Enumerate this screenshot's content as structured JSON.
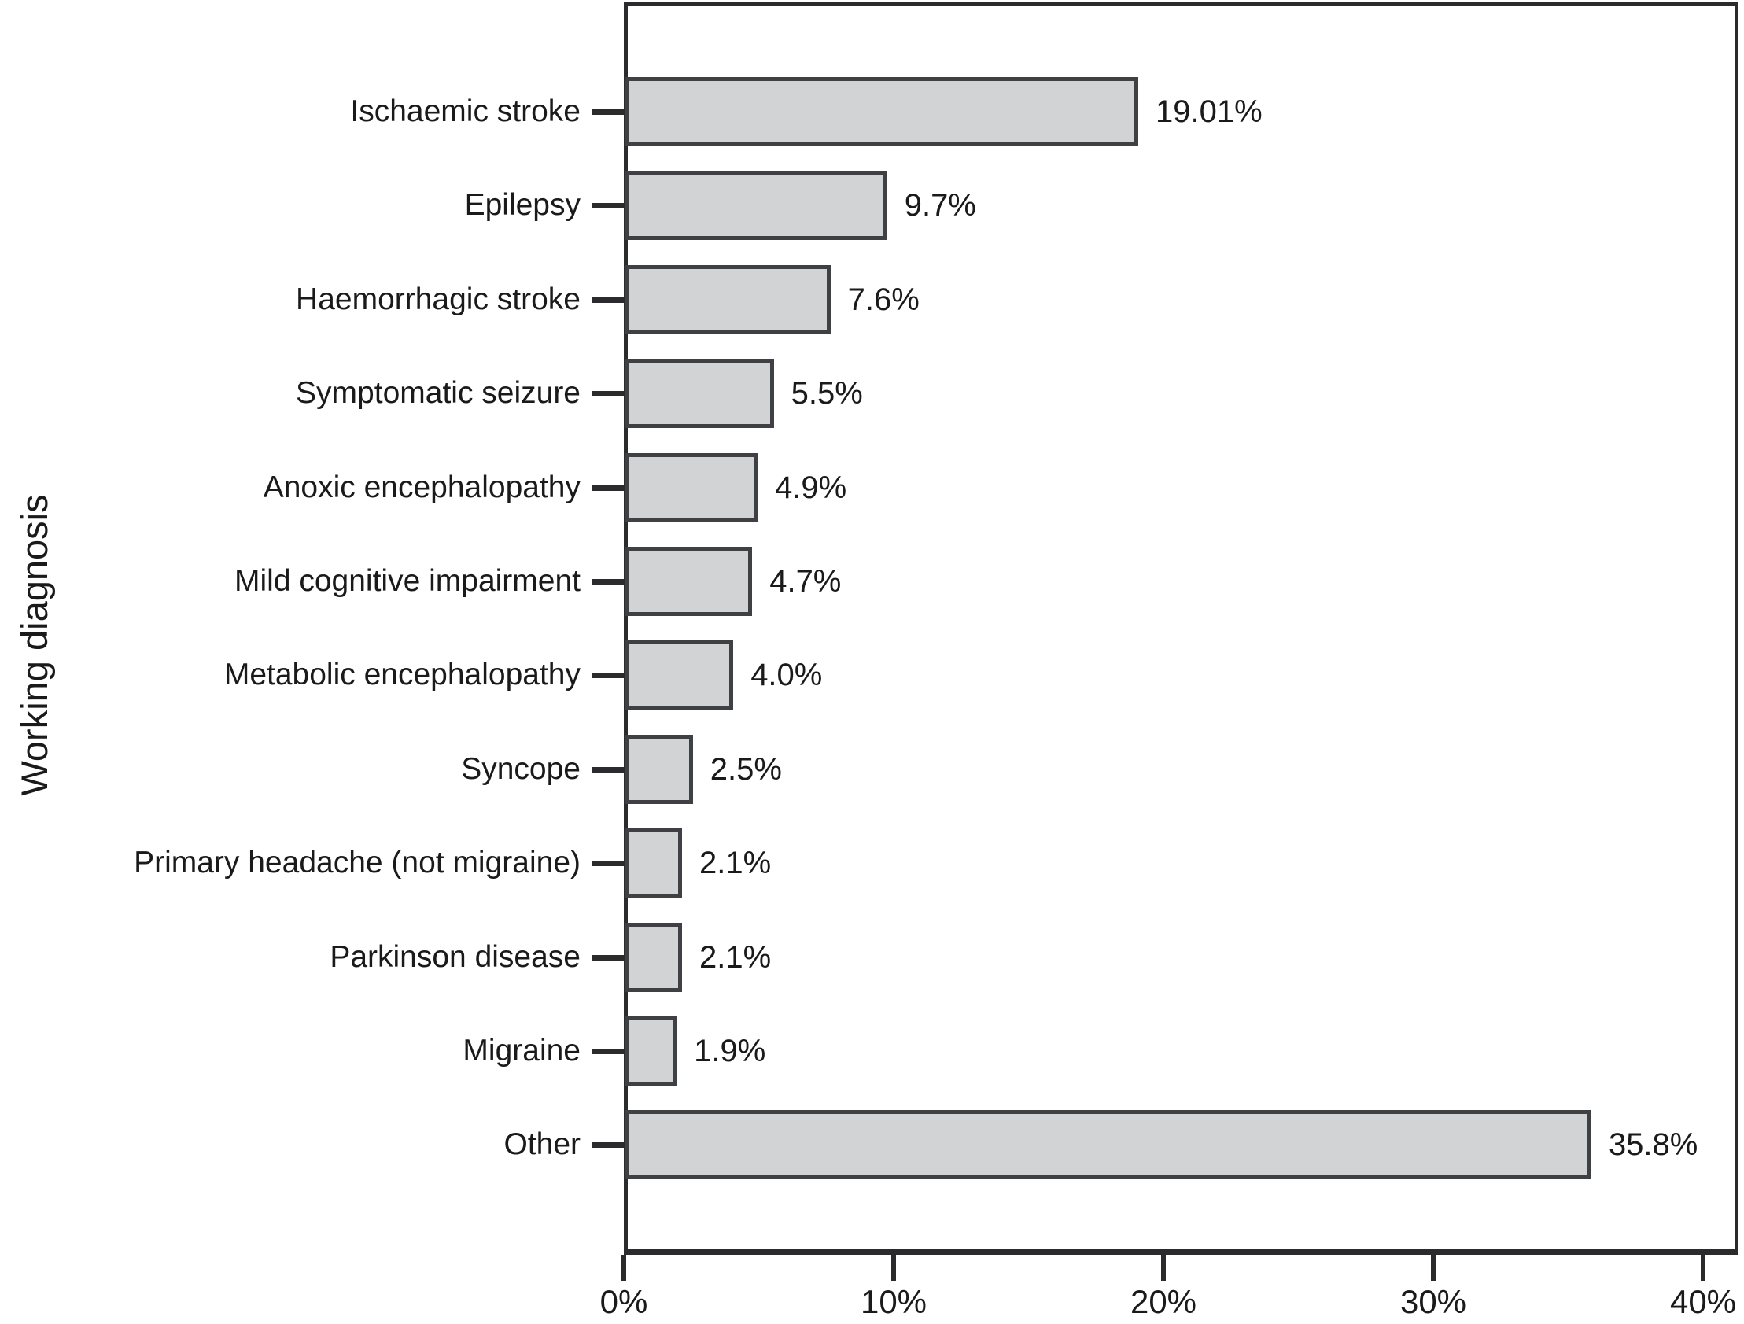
{
  "chart_data": {
    "type": "bar",
    "orientation": "horizontal",
    "title": "",
    "xlabel": "",
    "ylabel": "Working diagnosis",
    "categories": [
      "Ischaemic stroke",
      "Epilepsy",
      "Haemorrhagic stroke",
      "Symptomatic seizure",
      "Anoxic encephalopathy",
      "Mild cognitive impairment",
      "Metabolic encephalopathy",
      "Syncope",
      "Primary headache (not migraine)",
      "Parkinson disease",
      "Migraine",
      "Other"
    ],
    "values": [
      19.01,
      9.7,
      7.6,
      5.5,
      4.9,
      4.7,
      4.0,
      2.5,
      2.1,
      2.1,
      1.9,
      35.8
    ],
    "value_labels": [
      "19.01%",
      "9.7%",
      "7.6%",
      "5.5%",
      "4.9%",
      "4.7%",
      "4.0%",
      "2.5%",
      "2.1%",
      "2.1%",
      "1.9%",
      "35.8%"
    ],
    "x_ticks": [
      {
        "label": "0%",
        "value": 0
      },
      {
        "label": "10%",
        "value": 10
      },
      {
        "label": "20%",
        "value": 20
      },
      {
        "label": "30%",
        "value": 30
      },
      {
        "label": "40%",
        "value": 40
      }
    ],
    "xlim": [
      0,
      41.3
    ],
    "grid": false,
    "legend": null,
    "colors": {
      "bar_fill": "#d2d3d5",
      "bar_border": "#3f4043",
      "axis": "#2b2b2e",
      "text": "#1a1a1a"
    }
  }
}
